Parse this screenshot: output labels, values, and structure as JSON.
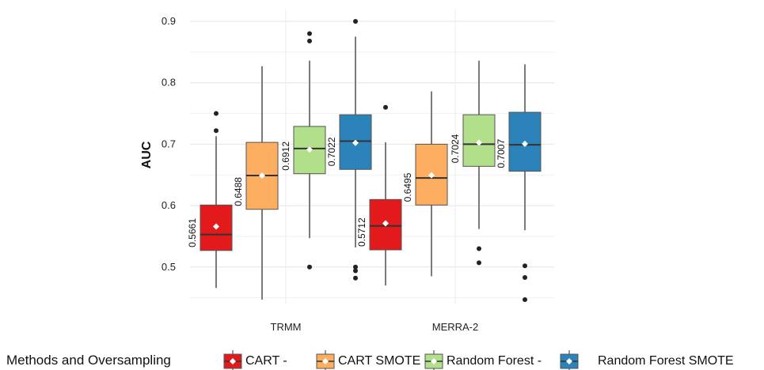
{
  "chart_data": {
    "type": "box",
    "title": "",
    "xlabel": "",
    "ylabel": "AUC",
    "ylim": [
      0.44,
      0.92
    ],
    "yticks": [
      "0.5",
      "0.6",
      "0.7",
      "0.8",
      "0.9"
    ],
    "grid": true,
    "legend_position": "bottom",
    "legend_title": "Methods and Oversampling",
    "categories": [
      "TRMM",
      "MERRA-2"
    ],
    "series": [
      {
        "name": "CART -",
        "color": "#e31a1c",
        "boxes": [
          {
            "min": 0.466,
            "q1": 0.527,
            "median": 0.553,
            "q3": 0.601,
            "max": 0.713,
            "mean": 0.5661,
            "mean_label": "0.5661",
            "outliers": [
              0.722,
              0.75
            ]
          },
          {
            "min": 0.47,
            "q1": 0.528,
            "median": 0.567,
            "q3": 0.61,
            "max": 0.703,
            "mean": 0.5712,
            "mean_label": "0.5712",
            "outliers": [
              0.76
            ]
          }
        ]
      },
      {
        "name": "CART SMOTE",
        "color": "#fdae61",
        "boxes": [
          {
            "min": 0.447,
            "q1": 0.594,
            "median": 0.649,
            "q3": 0.703,
            "max": 0.827,
            "mean": 0.6488,
            "mean_label": "0.6488",
            "outliers": []
          },
          {
            "min": 0.485,
            "q1": 0.601,
            "median": 0.645,
            "q3": 0.7,
            "max": 0.786,
            "mean": 0.6495,
            "mean_label": "0.6495",
            "outliers": []
          }
        ]
      },
      {
        "name": "Random Forest -",
        "color": "#b2df8a",
        "boxes": [
          {
            "min": 0.547,
            "q1": 0.652,
            "median": 0.693,
            "q3": 0.729,
            "max": 0.836,
            "mean": 0.6912,
            "mean_label": "0.6912",
            "outliers": [
              0.5,
              0.868,
              0.88
            ]
          },
          {
            "min": 0.562,
            "q1": 0.664,
            "median": 0.7,
            "q3": 0.748,
            "max": 0.836,
            "mean": 0.7024,
            "mean_label": "0.7024",
            "outliers": [
              0.507,
              0.53
            ]
          }
        ]
      },
      {
        "name": "Random Forest SMOTE",
        "color": "#2b83ba",
        "boxes": [
          {
            "min": 0.532,
            "q1": 0.659,
            "median": 0.705,
            "q3": 0.748,
            "max": 0.875,
            "mean": 0.7022,
            "mean_label": "0.7022",
            "outliers": [
              0.482,
              0.494,
              0.5,
              0.9
            ]
          },
          {
            "min": 0.56,
            "q1": 0.656,
            "median": 0.699,
            "q3": 0.752,
            "max": 0.83,
            "mean": 0.7007,
            "mean_label": "0.7007",
            "outliers": [
              0.447,
              0.483,
              0.502
            ]
          }
        ]
      }
    ]
  }
}
